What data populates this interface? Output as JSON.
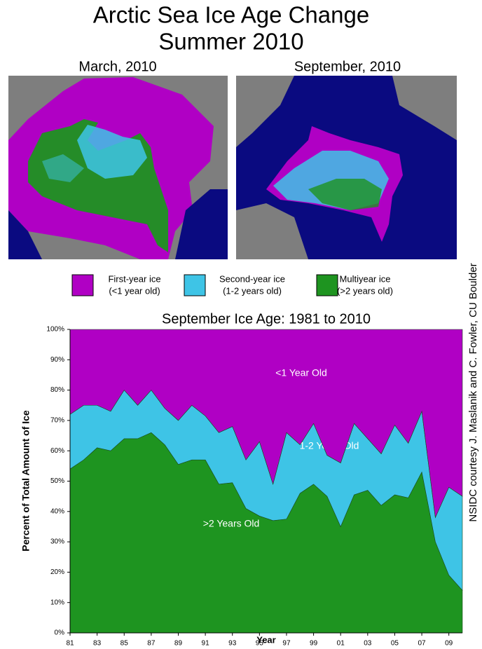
{
  "title": "Arctic Sea Ice Age Change",
  "subtitle": "Summer 2010",
  "maps": [
    {
      "label": "March, 2010"
    },
    {
      "label": "September, 2010"
    }
  ],
  "credit": "NSIDC courtesy J. Maslanik and C. Fowler, CU Boulder",
  "chart_data": {
    "type": "area",
    "stacked": true,
    "title": "September Ice Age: 1981 to 2010",
    "x_label": "Year",
    "y_label": "Percent of Total Amount of Ice",
    "x": [
      1981,
      1982,
      1983,
      1984,
      1985,
      1986,
      1987,
      1988,
      1989,
      1990,
      1991,
      1992,
      1993,
      1994,
      1995,
      1996,
      1997,
      1998,
      1999,
      2000,
      2001,
      2002,
      2003,
      2004,
      2005,
      2006,
      2007,
      2008,
      2009,
      2010
    ],
    "series": [
      {
        "name": "Multiyear ice",
        "sublabel": "(>2 years old)",
        "label": ">2 Years Old",
        "color": "#1e9420",
        "values": [
          54,
          57,
          61,
          60,
          64,
          64,
          66,
          62,
          55.5,
          57,
          57,
          49,
          49.5,
          41,
          38.5,
          37,
          37.5,
          46,
          49,
          45,
          35,
          45.5,
          47,
          42,
          45.5,
          44.5,
          53,
          30,
          19,
          14
        ]
      },
      {
        "name": "Second-year ice",
        "sublabel": "(1-2 years old)",
        "label": "1-2 Years Old",
        "color": "#3ec4e6",
        "values": [
          18,
          18,
          14,
          13,
          16,
          11,
          14,
          12,
          14.5,
          18,
          14.5,
          17,
          18.5,
          16,
          24.5,
          12,
          28.5,
          16,
          20,
          13.5,
          21,
          23.5,
          17,
          17,
          23,
          18,
          20,
          8,
          29,
          31
        ]
      },
      {
        "name": "First-year ice",
        "sublabel": "(<1 year old)",
        "label": "<1 Year Old",
        "color": "#b000c4",
        "values": [
          28,
          25,
          25,
          27,
          20,
          25,
          20,
          26,
          30,
          25,
          28.5,
          34,
          32,
          43,
          37,
          51,
          34,
          38,
          31,
          41.5,
          44,
          31,
          36,
          41,
          31.5,
          37.5,
          27,
          62,
          52,
          55
        ]
      }
    ],
    "xlim": [
      1981,
      2010
    ],
    "xticks": [
      {
        "value": 1981,
        "label": "81"
      },
      {
        "value": 1983,
        "label": "83"
      },
      {
        "value": 1985,
        "label": "85"
      },
      {
        "value": 1987,
        "label": "87"
      },
      {
        "value": 1989,
        "label": "89"
      },
      {
        "value": 1991,
        "label": "91"
      },
      {
        "value": 1993,
        "label": "93"
      },
      {
        "value": 1995,
        "label": "95"
      },
      {
        "value": 1997,
        "label": "97"
      },
      {
        "value": 1999,
        "label": "99"
      },
      {
        "value": 2001,
        "label": "01"
      },
      {
        "value": 2003,
        "label": "03"
      },
      {
        "value": 2005,
        "label": "05"
      },
      {
        "value": 2007,
        "label": "07"
      },
      {
        "value": 2009,
        "label": "09"
      }
    ],
    "ylim": [
      0,
      100
    ],
    "yticks": [
      {
        "value": 0,
        "label": "0%"
      },
      {
        "value": 10,
        "label": "10%"
      },
      {
        "value": 20,
        "label": "20%"
      },
      {
        "value": 30,
        "label": "30%"
      },
      {
        "value": 40,
        "label": "40%"
      },
      {
        "value": 50,
        "label": "50%"
      },
      {
        "value": 60,
        "label": "60%"
      },
      {
        "value": 70,
        "label": "70%"
      },
      {
        "value": 80,
        "label": "80%"
      },
      {
        "value": 90,
        "label": "90%"
      },
      {
        "value": 100,
        "label": "100%"
      }
    ]
  }
}
